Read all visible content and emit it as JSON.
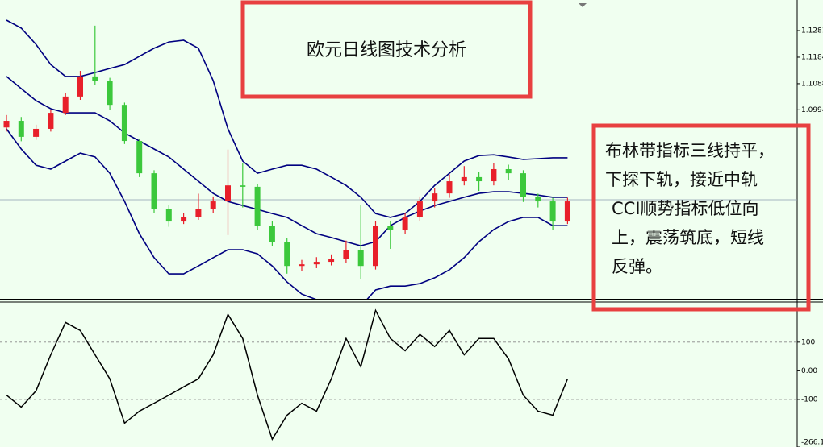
{
  "chart_data": [
    {
      "type": "candlestick",
      "title": "欧元日线图技术分析",
      "annotations": [
        "布林带指标三线持平，",
        "下探下轨，接近中轨",
        "CCI顺势指标低位向",
        "上，震荡筑底，短线",
        "反弹。"
      ],
      "up_color": "#e8202a",
      "down_color": "#3cc83c",
      "band_color": "#000080",
      "ylim": [
        1.0306,
        1.1392
      ],
      "yticks": [
        {
          "value": 1.1281,
          "label": "1.12810"
        },
        1.11848,
        1.10886,
        {
          "value": 1.0994,
          "label": "1.09940"
        }
      ],
      "open": [
        1.093,
        1.0954,
        1.0896,
        1.0925,
        1.0983,
        1.1042,
        1.1115,
        1.11,
        1.1012,
        1.0881,
        1.0764,
        1.0633,
        1.0589,
        1.0604,
        1.0633,
        1.0662,
        1.072,
        1.0715,
        1.0574,
        1.0516,
        1.0428,
        1.0434,
        1.0443,
        1.0452,
        1.0487,
        1.0428,
        1.0574,
        1.056,
        1.0604,
        1.0662,
        1.0691,
        1.0735,
        1.075,
        1.0735,
        1.0779,
        1.0764,
        1.0677,
        1.0662,
        1.0589
      ],
      "high": [
        1.0975,
        1.0968,
        1.094,
        1.0995,
        1.1055,
        1.1135,
        1.1299,
        1.111,
        1.102,
        1.089,
        1.0775,
        1.065,
        1.062,
        1.069,
        1.068,
        1.085,
        1.08,
        1.0725,
        1.059,
        1.053,
        1.045,
        1.046,
        1.047,
        1.052,
        1.065,
        1.059,
        1.059,
        1.062,
        1.068,
        1.071,
        1.076,
        1.079,
        1.077,
        1.08,
        1.0795,
        1.0775,
        1.069,
        1.0675,
        1.0675
      ],
      "low": [
        1.0915,
        1.088,
        1.0885,
        1.0915,
        1.0975,
        1.103,
        1.1085,
        1.0995,
        1.087,
        1.075,
        1.062,
        1.057,
        1.058,
        1.0595,
        1.062,
        1.054,
        1.064,
        1.056,
        1.05,
        1.04,
        1.041,
        1.042,
        1.043,
        1.044,
        1.038,
        1.0415,
        1.049,
        1.0545,
        1.059,
        1.064,
        1.0675,
        1.072,
        1.07,
        1.072,
        1.074,
        1.066,
        1.064,
        1.056,
        1.058
      ],
      "close": [
        1.0954,
        1.0896,
        1.0925,
        1.0983,
        1.1042,
        1.1115,
        1.11,
        1.1012,
        1.0881,
        1.0764,
        1.0633,
        1.0589,
        1.0604,
        1.0633,
        1.0662,
        1.072,
        1.0715,
        1.0574,
        1.0516,
        1.0428,
        1.0434,
        1.0443,
        1.0452,
        1.0487,
        1.0428,
        1.0574,
        1.056,
        1.0604,
        1.0662,
        1.0691,
        1.0735,
        1.075,
        1.0735,
        1.0779,
        1.0764,
        1.0677,
        1.0662,
        1.0589,
        1.0662
      ],
      "bands": {
        "upper": [
          1.1319,
          1.129,
          1.1231,
          1.1158,
          1.1115,
          1.1115,
          1.1129,
          1.1144,
          1.1158,
          1.1188,
          1.1217,
          1.124,
          1.1246,
          1.1217,
          1.11,
          1.0925,
          1.0808,
          1.0764,
          1.0779,
          1.0793,
          1.0793,
          1.0779,
          1.075,
          1.072,
          1.0677,
          1.0618,
          1.0604,
          1.0618,
          1.0662,
          1.072,
          1.0764,
          1.0808,
          1.0828,
          1.0831,
          1.0823,
          1.0814,
          1.0817,
          1.082,
          1.082
        ],
        "middle": [
          1.1115,
          1.1071,
          1.1027,
          1.0998,
          1.0983,
          1.0983,
          1.0983,
          1.0954,
          1.091,
          1.0881,
          1.0852,
          1.0823,
          1.0779,
          1.0735,
          1.0691,
          1.0662,
          1.0647,
          1.0633,
          1.0618,
          1.0604,
          1.0574,
          1.0545,
          1.0531,
          1.0516,
          1.0501,
          1.0516,
          1.0574,
          1.0604,
          1.0627,
          1.0647,
          1.0662,
          1.0677,
          1.0691,
          1.0697,
          1.0697,
          1.0691,
          1.0685,
          1.0677,
          1.0677
        ],
        "lower": [
          1.0925,
          1.0852,
          1.0793,
          1.0779,
          1.0808,
          1.0837,
          1.0823,
          1.0764,
          1.0662,
          1.0545,
          1.0458,
          1.0399,
          1.0399,
          1.0428,
          1.0458,
          1.0487,
          1.0487,
          1.0472,
          1.0428,
          1.037,
          1.0326,
          1.0306,
          1.0282,
          1.0253,
          1.0282,
          1.0341,
          1.0355,
          1.0355,
          1.0364,
          1.0385,
          1.0414,
          1.0458,
          1.0516,
          1.056,
          1.0589,
          1.0604,
          1.0604,
          1.0574,
          1.0574
        ]
      }
    },
    {
      "type": "line",
      "color": "#000000",
      "ylim": [
        -266.16,
        243
      ],
      "yticks": [
        100,
        {
          "value": 0,
          "label": "0.00"
        },
        -100,
        {
          "value": -266.16,
          "label": "-266.16"
        }
      ],
      "grid": [
        100,
        -100
      ],
      "values": [
        -85,
        -127,
        -70,
        56,
        169,
        141,
        56,
        -28,
        -183,
        -141,
        -113,
        -85,
        -56,
        -28,
        56,
        197,
        113,
        -85,
        -239,
        -155,
        -113,
        -141,
        -28,
        113,
        14,
        211,
        113,
        70,
        127,
        85,
        141,
        56,
        113,
        113,
        42,
        -85,
        -141,
        -155,
        -28
      ]
    }
  ]
}
